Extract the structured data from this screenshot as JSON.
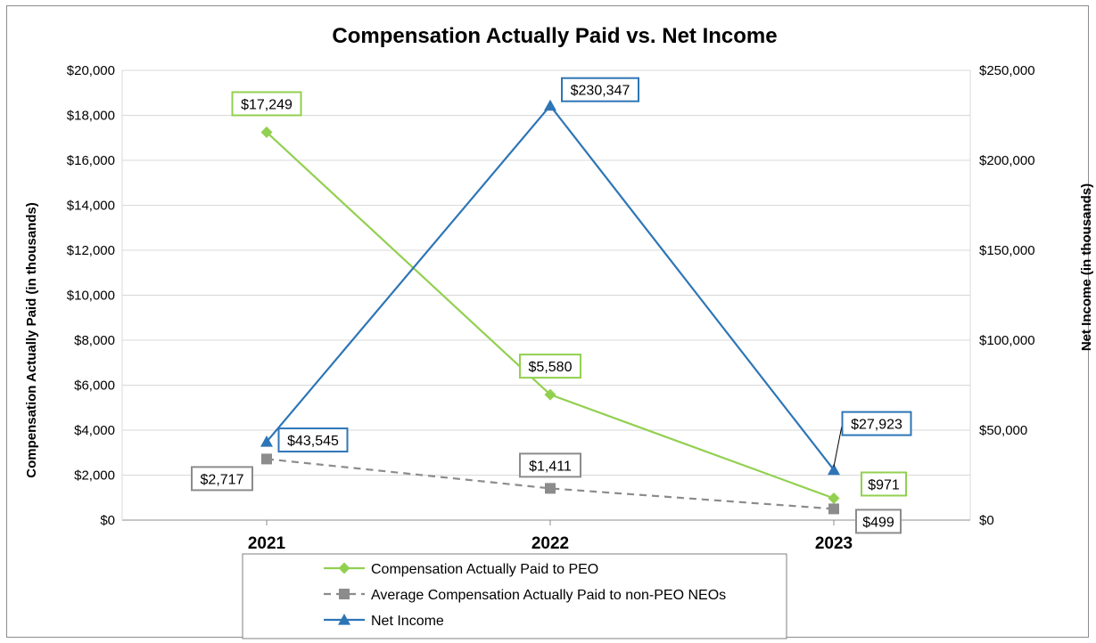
{
  "chart_data": {
    "type": "line",
    "title": "Compensation Actually Paid vs. Net Income",
    "ylabel_left": "Compensation Actually Paid (in thousands)",
    "ylabel_right": "Net Income (in thousands)",
    "categories": [
      "2021",
      "2022",
      "2023"
    ],
    "ylim_left": [
      0,
      20000
    ],
    "ylim_right": [
      0,
      250000
    ],
    "yticks_left": [
      "$0",
      "$2,000",
      "$4,000",
      "$6,000",
      "$8,000",
      "$10,000",
      "$12,000",
      "$14,000",
      "$16,000",
      "$18,000",
      "$20,000"
    ],
    "yticks_right": [
      "$0",
      "$50,000",
      "$100,000",
      "$150,000",
      "$200,000",
      "$250,000"
    ],
    "grid": true,
    "legend_position": "bottom",
    "series": [
      {
        "name": "Compensation Actually Paid to PEO",
        "axis": "left",
        "color": "#92d050",
        "marker": "diamond",
        "dash": "solid",
        "values": [
          17249,
          5580,
          971
        ],
        "labels": [
          "$17,249",
          "$5,580",
          "$971"
        ]
      },
      {
        "name": "Average Compensation Actually Paid to non-PEO NEOs",
        "axis": "left",
        "color": "#8c8c8c",
        "marker": "square",
        "dash": "dashed",
        "values": [
          2717,
          1411,
          499
        ],
        "labels": [
          "$2,717",
          "$1,411",
          "$499"
        ]
      },
      {
        "name": "Net Income",
        "axis": "right",
        "color": "#2e75b6",
        "marker": "triangle",
        "dash": "solid",
        "values": [
          43545,
          230347,
          27923
        ],
        "labels": [
          "$43,545",
          "$230,347",
          "$27,923"
        ]
      }
    ]
  }
}
